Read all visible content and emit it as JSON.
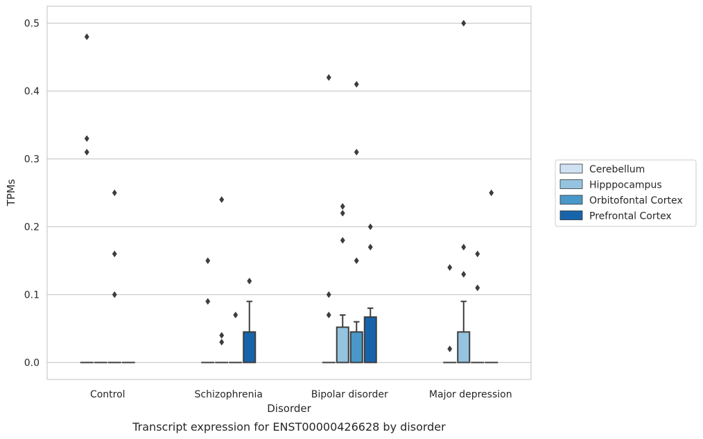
{
  "caption": "Transcript expression for ENST00000426628 by disorder",
  "chart_data": {
    "type": "box",
    "xlabel": "Disorder",
    "ylabel": "TPMs",
    "ylim": [
      -0.025,
      0.525
    ],
    "yticks": [
      0.0,
      0.1,
      0.2,
      0.3,
      0.4,
      0.5
    ],
    "ytick_labels": [
      "0.0",
      "0.1",
      "0.2",
      "0.3",
      "0.4",
      "0.5"
    ],
    "grid": "horizontal",
    "legend_position": "right",
    "categories": [
      "Control",
      "Schizophrenia",
      "Bipolar disorder",
      "Major depression"
    ],
    "series": [
      {
        "name": "Cerebellum",
        "color": "#d0e1f2",
        "boxes": [
          {
            "q1": 0,
            "median": 0,
            "q3": 0,
            "whisker_low": 0,
            "whisker_high": 0,
            "outliers": [
              0.48,
              0.33,
              0.31
            ]
          },
          {
            "q1": 0,
            "median": 0,
            "q3": 0,
            "whisker_low": 0,
            "whisker_high": 0,
            "outliers": [
              0.15,
              0.09
            ]
          },
          {
            "q1": 0,
            "median": 0,
            "q3": 0,
            "whisker_low": 0,
            "whisker_high": 0,
            "outliers": [
              0.42,
              0.1,
              0.07
            ]
          },
          {
            "q1": 0,
            "median": 0,
            "q3": 0,
            "whisker_low": 0,
            "whisker_high": 0,
            "outliers": [
              0.14,
              0.02
            ]
          }
        ]
      },
      {
        "name": "Hipppocampus",
        "color": "#94c4df",
        "boxes": [
          {
            "q1": 0,
            "median": 0,
            "q3": 0,
            "whisker_low": 0,
            "whisker_high": 0,
            "outliers": []
          },
          {
            "q1": 0,
            "median": 0,
            "q3": 0,
            "whisker_low": 0,
            "whisker_high": 0,
            "outliers": [
              0.24,
              0.04,
              0.03
            ]
          },
          {
            "q1": 0,
            "median": 0,
            "q3": 0.052,
            "whisker_low": 0,
            "whisker_high": 0.07,
            "outliers": [
              0.23,
              0.22,
              0.18
            ]
          },
          {
            "q1": 0,
            "median": 0,
            "q3": 0.045,
            "whisker_low": 0,
            "whisker_high": 0.09,
            "outliers": [
              0.5,
              0.17,
              0.13
            ]
          }
        ]
      },
      {
        "name": "Orbitofontal Cortex",
        "color": "#4a98c9",
        "boxes": [
          {
            "q1": 0,
            "median": 0,
            "q3": 0,
            "whisker_low": 0,
            "whisker_high": 0,
            "outliers": [
              0.25,
              0.16,
              0.1
            ]
          },
          {
            "q1": 0,
            "median": 0,
            "q3": 0,
            "whisker_low": 0,
            "whisker_high": 0,
            "outliers": [
              0.07
            ]
          },
          {
            "q1": 0,
            "median": 0,
            "q3": 0.045,
            "whisker_low": 0,
            "whisker_high": 0.06,
            "outliers": [
              0.41,
              0.31,
              0.15
            ]
          },
          {
            "q1": 0,
            "median": 0,
            "q3": 0,
            "whisker_low": 0,
            "whisker_high": 0,
            "outliers": [
              0.16,
              0.11
            ]
          }
        ]
      },
      {
        "name": "Prefrontal Cortex",
        "color": "#1764ab",
        "boxes": [
          {
            "q1": 0,
            "median": 0,
            "q3": 0,
            "whisker_low": 0,
            "whisker_high": 0,
            "outliers": []
          },
          {
            "q1": 0,
            "median": 0,
            "q3": 0.045,
            "whisker_low": 0,
            "whisker_high": 0.09,
            "outliers": [
              0.12
            ]
          },
          {
            "q1": 0,
            "median": 0,
            "q3": 0.067,
            "whisker_low": 0,
            "whisker_high": 0.08,
            "outliers": [
              0.2,
              0.17
            ]
          },
          {
            "q1": 0,
            "median": 0,
            "q3": 0,
            "whisker_low": 0,
            "whisker_high": 0,
            "outliers": [
              0.25
            ]
          }
        ]
      }
    ]
  }
}
